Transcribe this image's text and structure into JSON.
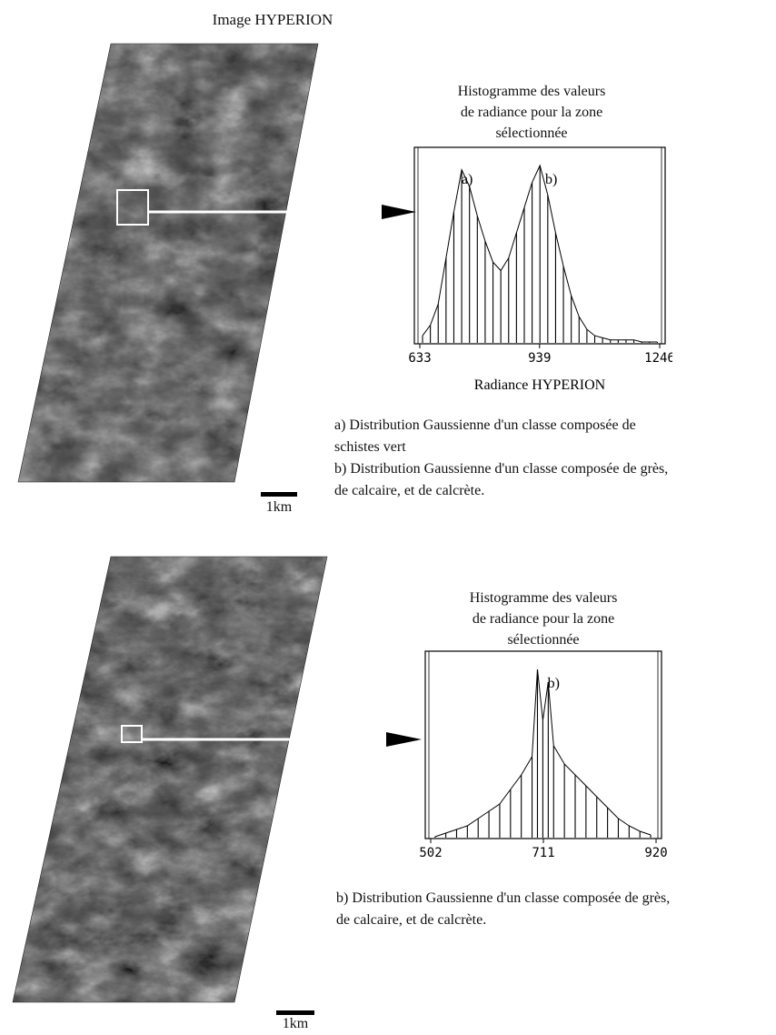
{
  "figure": {
    "image_title": "Image HYPERION",
    "scale_label": "1km"
  },
  "panels": [
    {
      "hist_title": [
        "Histogramme des valeurs",
        "de radiance pour la zone",
        "sélectionnée"
      ],
      "x_axis_label": "Radiance HYPERION",
      "peak_labels": [
        "a)",
        "b)"
      ],
      "caption_lines": [
        "a) Distribution Gaussienne d'un classe composée de",
        "schistes vert",
        "b) Distribution Gaussienne d'un classe composée de grès,",
        "de calcaire, et de calcrète."
      ]
    },
    {
      "hist_title": [
        "Histogramme des valeurs",
        "de radiance pour la zone",
        "sélectionnée"
      ],
      "peak_labels": [
        "b)"
      ],
      "caption_lines": [
        "b) Distribution Gaussienne d'un classe composée de grès,",
        "de calcaire, et de calcrète."
      ]
    }
  ],
  "chart_data": [
    {
      "type": "bar",
      "xlabel": "Radiance HYPERION",
      "xlim": [
        633,
        1246
      ],
      "xticks": [
        633,
        939,
        1246
      ],
      "peaks": [
        {
          "label": "a)",
          "x": 740
        },
        {
          "label": "b)",
          "x": 955
        }
      ],
      "series": [
        {
          "x": [
            640,
            660,
            680,
            700,
            720,
            740,
            760,
            780,
            800,
            820,
            840,
            860,
            880,
            900,
            920,
            940,
            960,
            980,
            1000,
            1020,
            1040,
            1060,
            1080,
            1100,
            1120,
            1140,
            1160,
            1180,
            1200,
            1220,
            1240
          ],
          "values": [
            3,
            8,
            18,
            40,
            62,
            82,
            74,
            60,
            48,
            38,
            34,
            40,
            52,
            64,
            76,
            84,
            70,
            52,
            36,
            22,
            12,
            6,
            3,
            2,
            1,
            1,
            1,
            1,
            0,
            0,
            0
          ]
        }
      ]
    },
    {
      "type": "bar",
      "xlim": [
        502,
        920
      ],
      "xticks": [
        502,
        711,
        920
      ],
      "peaks": [
        {
          "label": "b)",
          "x": 720
        }
      ],
      "series": [
        {
          "x": [
            510,
            530,
            550,
            570,
            590,
            610,
            630,
            650,
            670,
            690,
            700,
            710,
            720,
            730,
            750,
            770,
            790,
            810,
            830,
            850,
            870,
            890,
            910
          ],
          "values": [
            0,
            2,
            4,
            6,
            10,
            14,
            18,
            26,
            34,
            44,
            92,
            64,
            85,
            50,
            40,
            34,
            28,
            22,
            16,
            10,
            6,
            3,
            1
          ]
        }
      ]
    }
  ]
}
